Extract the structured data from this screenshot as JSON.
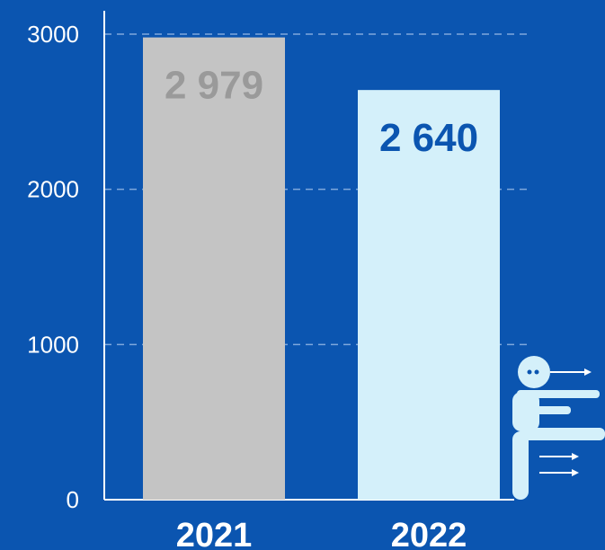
{
  "chart_data": {
    "type": "bar",
    "categories": [
      "2021",
      "2022"
    ],
    "values": [
      2979,
      2640
    ],
    "value_labels": [
      "2 979",
      "2 640"
    ],
    "yticks": [
      "0",
      "1000",
      "2000",
      "3000"
    ],
    "ylim": [
      0,
      3000
    ],
    "grid": true,
    "colors": {
      "background": "#0b55b0",
      "bars": [
        "#c4c4c4",
        "#d4f0fa"
      ],
      "labels": [
        "#9a9a9a",
        "#0b55b0"
      ],
      "grid": "#7fa8dc"
    }
  },
  "icons": {
    "person": "person-pointing-icon"
  }
}
